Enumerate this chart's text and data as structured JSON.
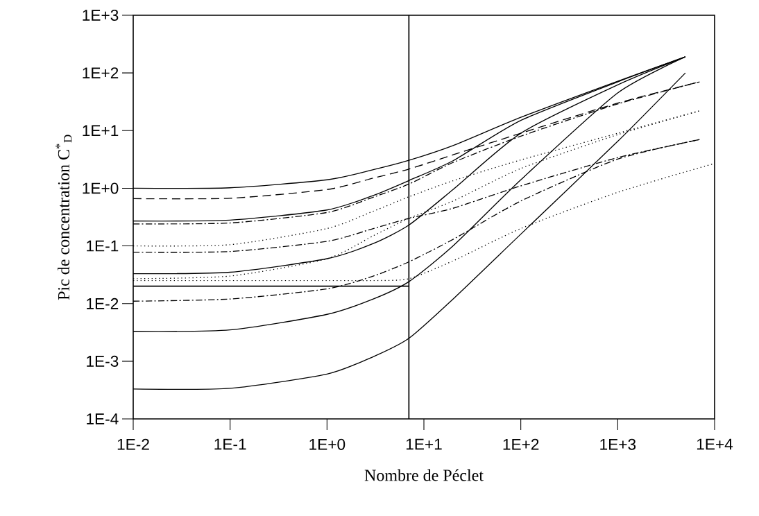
{
  "chart_data": {
    "type": "line",
    "xlabel": "Nombre de Péclet",
    "ylabel": "Pic de concentration C$^{*}$$_{D}$",
    "log": "xy",
    "xlim": [
      0.01,
      10000
    ],
    "ylim": [
      0.0001,
      1000
    ],
    "xticks": [
      {
        "value": 0.01,
        "label": "1E-2"
      },
      {
        "value": 0.1,
        "label": "1E-1"
      },
      {
        "value": 1,
        "label": "1E+0"
      },
      {
        "value": 10,
        "label": "1E+1"
      },
      {
        "value": 100,
        "label": "1E+2"
      },
      {
        "value": 1000,
        "label": "1E+3"
      },
      {
        "value": 10000,
        "label": "1E+4"
      }
    ],
    "yticks": [
      {
        "value": 0.0001,
        "label": "1E-4"
      },
      {
        "value": 0.001,
        "label": "1E-3"
      },
      {
        "value": 0.01,
        "label": "1E-2"
      },
      {
        "value": 0.1,
        "label": "1E-1"
      },
      {
        "value": 1,
        "label": "1E+0"
      },
      {
        "value": 10,
        "label": "1E+1"
      },
      {
        "value": 100,
        "label": "1E+2"
      },
      {
        "value": 1000,
        "label": "1E+3"
      }
    ],
    "ref_lines": [
      {
        "axis": "x",
        "value": 7,
        "color": "#000000"
      },
      {
        "axis": "y",
        "value": 0.02,
        "color": "#000000"
      }
    ],
    "series": [
      {
        "color": "#000000",
        "line_style": "solid",
        "x": [
          0.01,
          0.1,
          1,
          3,
          7,
          20,
          100,
          1000,
          5000
        ],
        "values": [
          1.0,
          1.02,
          1.4,
          2.1,
          3.05,
          5.5,
          17,
          72,
          190
        ]
      },
      {
        "color": "#000000",
        "line_style": "solid",
        "x": [
          0.01,
          0.1,
          1,
          3,
          7,
          20,
          100,
          1000,
          5000
        ],
        "values": [
          0.27,
          0.28,
          0.42,
          0.75,
          1.36,
          3.0,
          15,
          70,
          190
        ]
      },
      {
        "color": "#000000",
        "line_style": "solid",
        "x": [
          0.01,
          0.1,
          1,
          3,
          7,
          20,
          100,
          1000,
          5000
        ],
        "values": [
          0.033,
          0.035,
          0.06,
          0.11,
          0.23,
          0.95,
          9,
          62,
          190
        ]
      },
      {
        "color": "#000000",
        "line_style": "solid",
        "x": [
          0.01,
          0.1,
          1,
          3,
          7,
          20,
          100,
          1000,
          5000
        ],
        "values": [
          0.0033,
          0.0035,
          0.0065,
          0.012,
          0.024,
          0.1,
          1.4,
          45,
          190
        ]
      },
      {
        "color": "#000000",
        "line_style": "solid",
        "x": [
          0.01,
          0.1,
          1,
          3,
          7,
          20,
          100,
          1000,
          5000
        ],
        "values": [
          0.00033,
          0.00034,
          0.0006,
          0.0012,
          0.0025,
          0.012,
          0.16,
          6.5,
          100
        ]
      },
      {
        "color": "#000000",
        "line_style": "dashed",
        "x": [
          0.01,
          0.1,
          1,
          3,
          7,
          20,
          100,
          1000,
          7000
        ],
        "values": [
          0.66,
          0.67,
          0.95,
          1.5,
          2.15,
          3.8,
          9,
          30,
          70
        ]
      },
      {
        "color": "#000000",
        "line_style": "dashdot",
        "x": [
          0.01,
          0.1,
          1,
          3,
          7,
          20,
          100,
          1000,
          7000
        ],
        "values": [
          0.24,
          0.25,
          0.38,
          0.7,
          1.18,
          2.8,
          8,
          29,
          70
        ]
      },
      {
        "color": "#000000",
        "line_style": "dotted",
        "x": [
          0.01,
          0.1,
          1,
          3,
          7,
          20,
          100,
          1000,
          7000
        ],
        "values": [
          0.1,
          0.105,
          0.2,
          0.4,
          0.71,
          1.35,
          3.1,
          9,
          22
        ]
      },
      {
        "color": "#000000",
        "line_style": "dotted",
        "x": [
          0.01,
          0.1,
          1,
          3,
          7,
          20,
          100,
          1000,
          7000
        ],
        "values": [
          0.027,
          0.03,
          0.06,
          0.15,
          0.3,
          0.6,
          2.2,
          8.5,
          22
        ]
      },
      {
        "color": "#000000",
        "line_style": "dashdot",
        "x": [
          0.01,
          0.1,
          1,
          3,
          7,
          20,
          100,
          1000,
          7000
        ],
        "values": [
          0.078,
          0.08,
          0.12,
          0.2,
          0.3,
          0.45,
          1.1,
          3.4,
          7
        ]
      },
      {
        "color": "#000000",
        "line_style": "dashdot",
        "x": [
          0.01,
          0.1,
          1,
          3,
          7,
          20,
          100,
          1000,
          7000
        ],
        "values": [
          0.011,
          0.012,
          0.018,
          0.03,
          0.053,
          0.13,
          0.6,
          3.2,
          7
        ]
      },
      {
        "color": "#000000",
        "line_style": "dotted",
        "x": [
          0.01,
          0.1,
          1,
          3,
          7,
          20,
          100,
          1000,
          10000
        ],
        "values": [
          0.025,
          0.025,
          0.025,
          0.025,
          0.027,
          0.055,
          0.2,
          0.85,
          2.7
        ]
      }
    ]
  }
}
